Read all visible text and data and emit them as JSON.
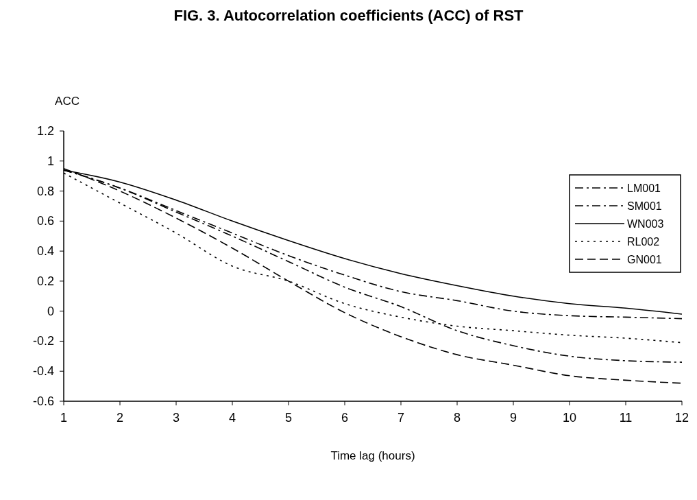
{
  "chart_data": {
    "type": "line",
    "title": "FIG. 3. Autocorrelation coefficients (ACC) of RST",
    "xlabel": "Time lag (hours)",
    "ylabel": "ACC",
    "x": [
      1,
      2,
      3,
      4,
      5,
      6,
      7,
      8,
      9,
      10,
      11,
      12
    ],
    "xlim": [
      1,
      12
    ],
    "xticks": [
      1,
      2,
      3,
      4,
      5,
      6,
      7,
      8,
      9,
      10,
      11,
      12
    ],
    "ylim": [
      -0.6,
      1.2
    ],
    "yticks": [
      -0.6,
      -0.4,
      -0.2,
      0,
      0.2,
      0.4,
      0.6,
      0.8,
      1,
      1.2
    ],
    "grid": false,
    "legend": "top right",
    "series": [
      {
        "name": "LM001",
        "color": "#000000",
        "line_style": "dashdot",
        "values": [
          0.94,
          0.82,
          0.67,
          0.52,
          0.37,
          0.24,
          0.13,
          0.07,
          0.0,
          -0.03,
          -0.04,
          -0.05
        ]
      },
      {
        "name": "SM001",
        "color": "#000000",
        "line_style": "dashdot",
        "values": [
          0.94,
          0.82,
          0.66,
          0.5,
          0.33,
          0.16,
          0.03,
          -0.13,
          -0.23,
          -0.3,
          -0.33,
          -0.34
        ]
      },
      {
        "name": "WN003",
        "color": "#000000",
        "line_style": "solid",
        "values": [
          0.94,
          0.86,
          0.74,
          0.6,
          0.47,
          0.35,
          0.25,
          0.17,
          0.1,
          0.05,
          0.02,
          -0.02
        ]
      },
      {
        "name": "RL002",
        "color": "#000000",
        "line_style": "dotted",
        "values": [
          0.92,
          0.72,
          0.52,
          0.3,
          0.2,
          0.05,
          -0.04,
          -0.1,
          -0.13,
          -0.16,
          -0.18,
          -0.21
        ]
      },
      {
        "name": "GN001",
        "color": "#000000",
        "line_style": "dashed",
        "values": [
          0.95,
          0.8,
          0.62,
          0.42,
          0.2,
          -0.01,
          -0.17,
          -0.29,
          -0.36,
          -0.43,
          -0.46,
          -0.48
        ]
      }
    ]
  }
}
